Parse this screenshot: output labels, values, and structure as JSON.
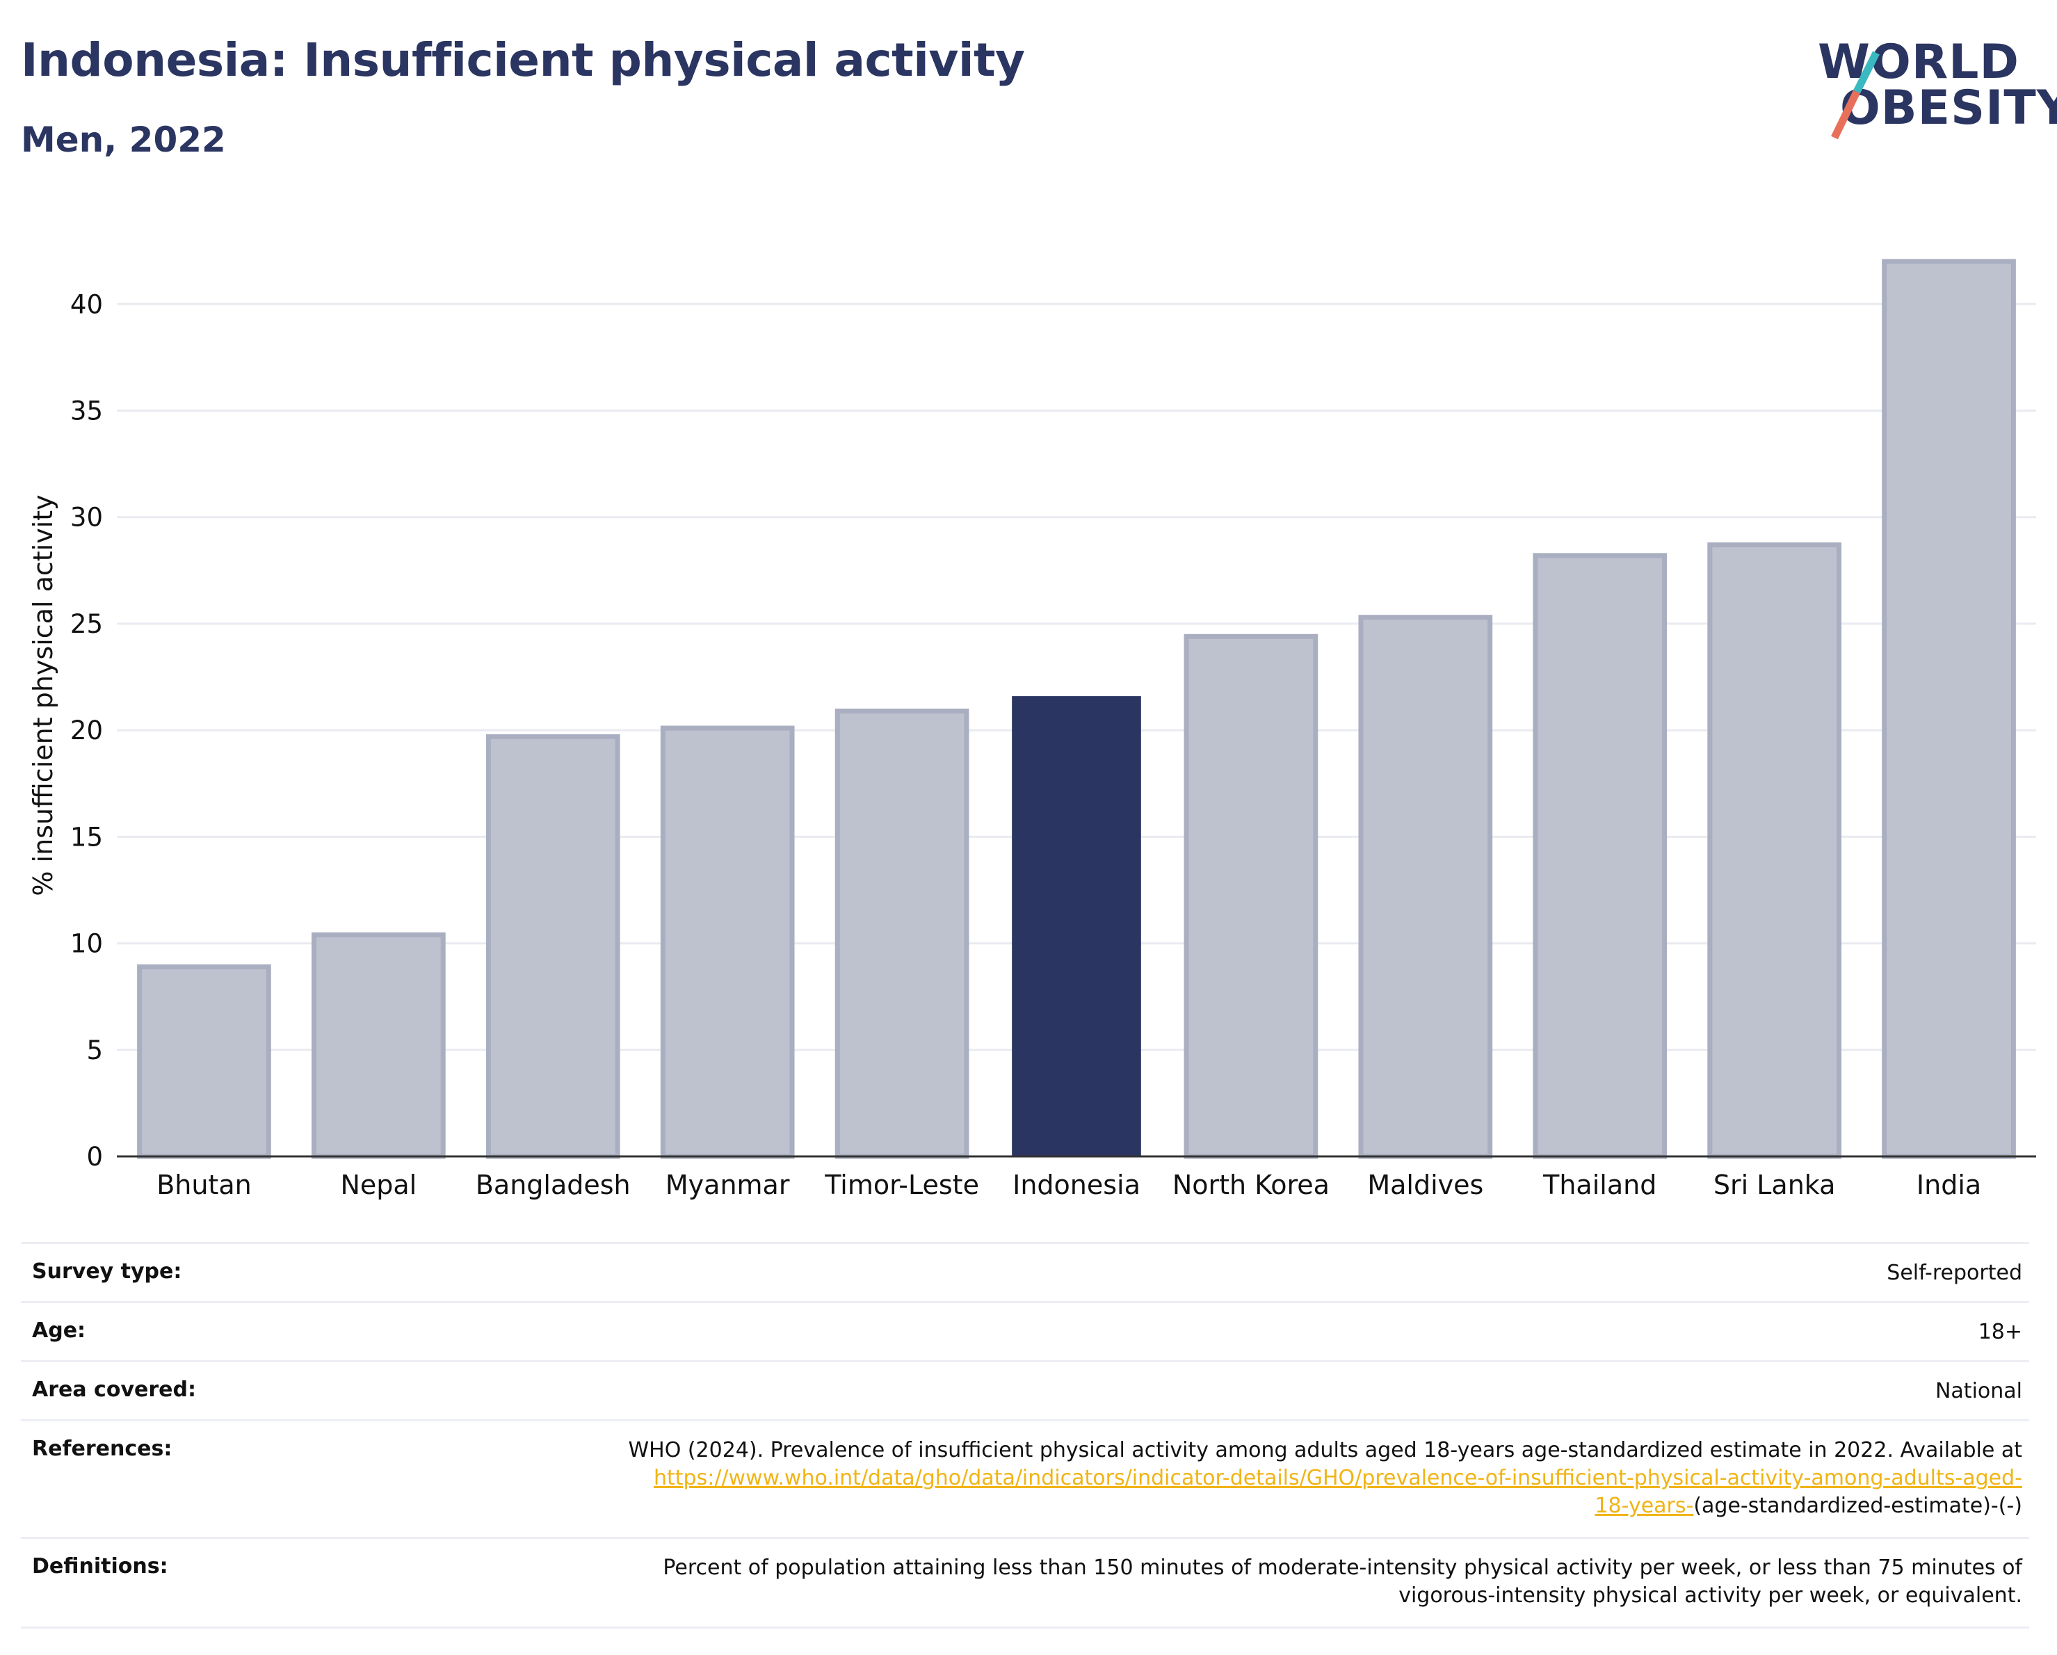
{
  "header": {
    "title": "Indonesia: Insufficient physical activity",
    "subtitle": "Men, 2022"
  },
  "logo": {
    "line1": "WORLD",
    "line2": "OBESITY",
    "slash_colors": [
      "#3ab9c0",
      "#e8705a"
    ]
  },
  "chart_data": {
    "type": "bar",
    "title": "Indonesia: Insufficient physical activity",
    "subtitle": "Men, 2022",
    "xlabel": "",
    "ylabel": "% insufficient physical activity",
    "ylim": [
      0,
      43.5
    ],
    "yticks": [
      0,
      5,
      10,
      15,
      20,
      25,
      30,
      35,
      40
    ],
    "grid": true,
    "categories": [
      "Bhutan",
      "Nepal",
      "Bangladesh",
      "Myanmar",
      "Timor-Leste",
      "Indonesia",
      "North Korea",
      "Maldives",
      "Thailand",
      "Sri Lanka",
      "India"
    ],
    "values": [
      8.9,
      10.4,
      19.7,
      20.1,
      20.9,
      21.6,
      24.4,
      25.3,
      28.2,
      28.7,
      42.0
    ],
    "highlight": "Indonesia",
    "colors": {
      "bar": "#bec2cf",
      "bar_border": "#a9aec0",
      "highlight": "#2b3561",
      "grid": "#e9ebf1",
      "axis": "#333333"
    }
  },
  "info": {
    "survey_type": {
      "label": "Survey type:",
      "value": "Self-reported"
    },
    "age": {
      "label": "Age:",
      "value": "18+"
    },
    "area": {
      "label": "Area covered:",
      "value": "National"
    },
    "references": {
      "label": "References:",
      "text": "WHO (2024). Prevalence of insufficient physical activity among adults aged 18-years age-standardized estimate in 2022. Available at",
      "link_part1": "https://www.who.int/data/gho/data/indicators/indicator-details/GHO/prevalence-of-insufficient-physical-activity-among-adults-aged-",
      "link_part2": "18-years-",
      "suffix": "(age-standardized-estimate)-(-)"
    },
    "definitions": {
      "label": "Definitions:",
      "line1": "Percent of population attaining less than 150 minutes of moderate-intensity physical activity per week, or less than 75 minutes of",
      "line2": "vigorous-intensity physical activity per week, or equivalent."
    },
    "link_color": "#f0b415"
  }
}
